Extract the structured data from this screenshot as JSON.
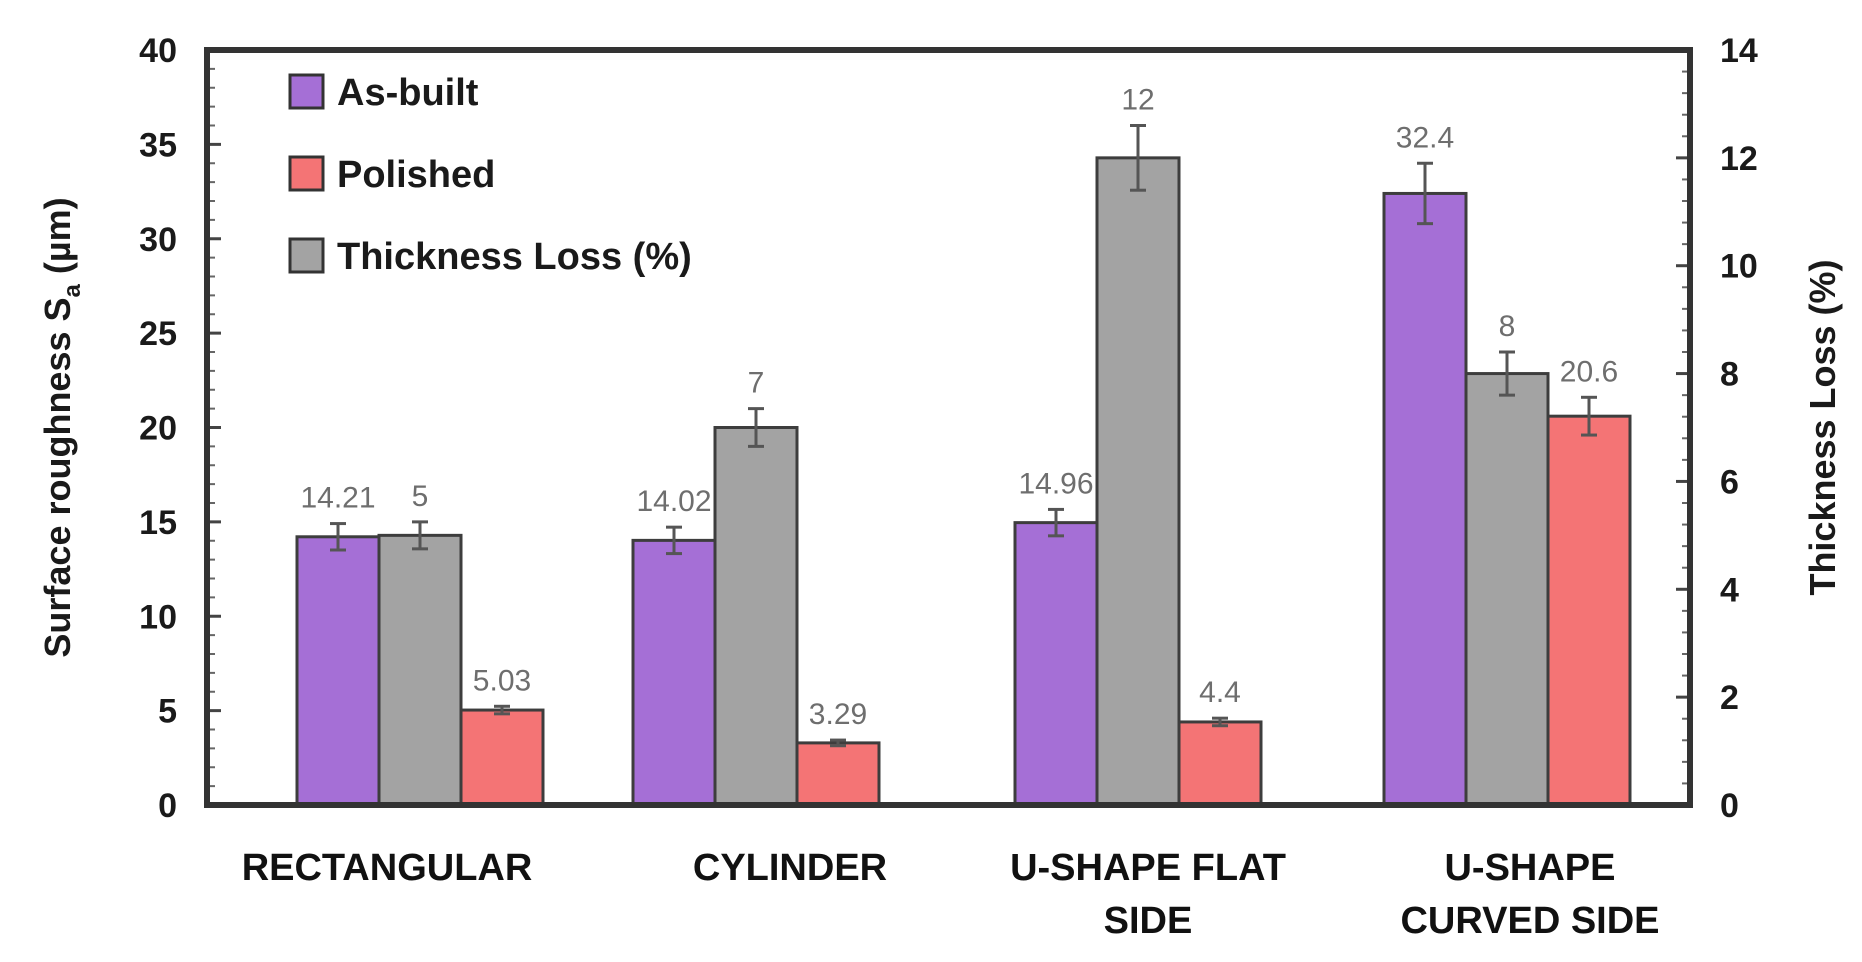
{
  "chart_data": {
    "type": "bar",
    "title": "",
    "categories": [
      [
        "RECTANGULAR"
      ],
      [
        "CYLINDER"
      ],
      [
        "U-SHAPE FLAT",
        "SIDE"
      ],
      [
        "U-SHAPE",
        "CURVED SIDE"
      ]
    ],
    "ylabel_left": "Surface roughness Sa (µm)",
    "ylabel_left_parts": {
      "main": "Surface roughness S",
      "sub": "a",
      "unit": " (µm)"
    },
    "ylabel_right": "Thickness Loss (%)",
    "ylim_left": [
      0,
      40
    ],
    "ylim_right": [
      0,
      14
    ],
    "yticks_left": [
      0,
      5,
      10,
      15,
      20,
      25,
      30,
      35,
      40
    ],
    "yticks_right": [
      0,
      2,
      4,
      6,
      8,
      10,
      12,
      14
    ],
    "legend_position": "top-left",
    "series": [
      {
        "name": "As-built",
        "axis": "left",
        "color": "#a56fd6",
        "values": [
          14.21,
          14.02,
          14.96,
          32.4
        ],
        "labels": [
          "14.21",
          "14.02",
          "14.96",
          "32.4"
        ],
        "errors": [
          0.7,
          0.7,
          0.7,
          1.6
        ]
      },
      {
        "name": "Thickness Loss (%)",
        "axis": "right",
        "color": "#a3a3a3",
        "values": [
          5,
          7,
          12,
          8
        ],
        "labels": [
          "5",
          "7",
          "12",
          "8"
        ],
        "errors": [
          0.25,
          0.35,
          0.6,
          0.4
        ]
      },
      {
        "name": "Polished",
        "axis": "left",
        "color": "#f47475",
        "values": [
          5.03,
          3.29,
          4.4,
          20.6
        ],
        "labels": [
          "5.03",
          "3.29",
          "4.4",
          "20.6"
        ],
        "errors": [
          0.2,
          0.15,
          0.2,
          1.0
        ]
      }
    ],
    "legend_order": [
      "As-built",
      "Polished",
      "Thickness Loss (%)"
    ]
  }
}
